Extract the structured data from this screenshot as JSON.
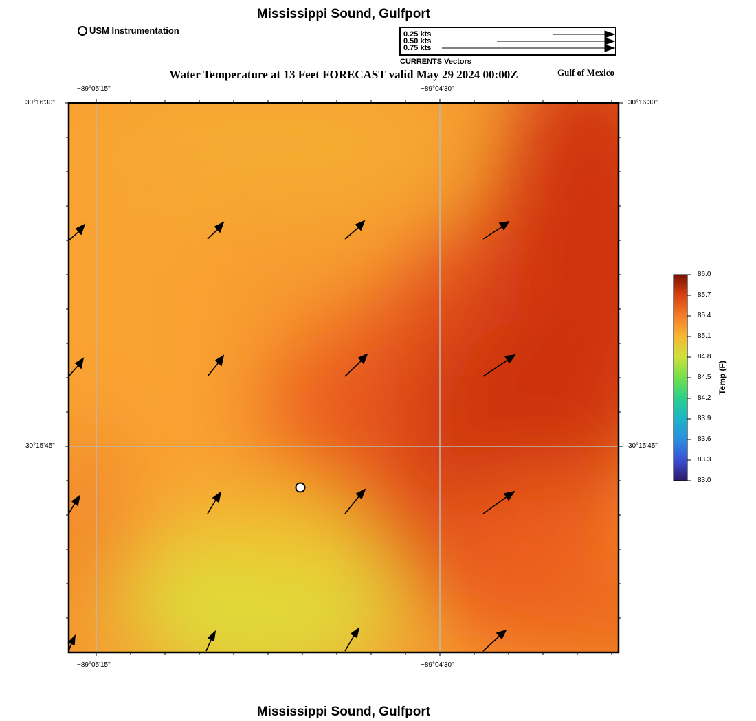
{
  "header": {
    "title": "Mississippi Sound, Gulfport",
    "usm_legend": "USM Instrumentation",
    "forecast_title": "Water Temperature at 13 Feet FORECAST valid May 29 2024 00:00Z",
    "region": "Gulf of Mexico"
  },
  "vector_legend": {
    "caption": "CURRENTS Vectors",
    "entries": [
      {
        "label": "0.25 kts",
        "speed": 0.25
      },
      {
        "label": "0.50 kts",
        "speed": 0.5
      },
      {
        "label": "0.75 kts",
        "speed": 0.75
      }
    ]
  },
  "map": {
    "lon_labels": [
      "−89°05'15\"",
      "−89°04'30\""
    ],
    "lat_labels": [
      "30°16'30\"",
      "30°15'45\""
    ],
    "station": {
      "name": "USM Instrumentation"
    },
    "colors": {
      "cold": "#2b1a66",
      "mid_green": "#b6e232",
      "mid_yellow": "#d9e23a",
      "orange": "#f79a30",
      "hot": "#cc3008",
      "hottest": "#7a1205"
    }
  },
  "colorbar": {
    "title": "Temp (F)",
    "ticks": [
      "86.0",
      "85.7",
      "85.4",
      "85.1",
      "84.8",
      "84.5",
      "84.2",
      "83.9",
      "83.6",
      "83.3",
      "83.0"
    ],
    "min": 83.0,
    "max": 86.0
  },
  "footer": {
    "title": "Mississippi Sound, Gulfport"
  }
}
